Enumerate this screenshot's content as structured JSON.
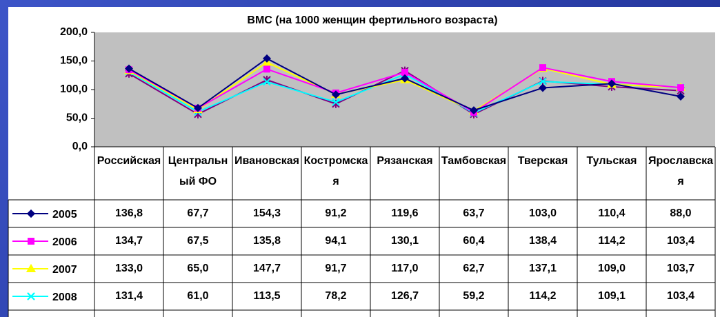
{
  "chart_data": {
    "type": "line",
    "title": "ВМС (на 1000 женщин фертильного возраста)",
    "categories": [
      "Российская",
      "Центральный ФО",
      "Ивановская",
      "Костромская",
      "Рязанская",
      "Тамбовская",
      "Тверская",
      "Тульская",
      "Ярославская"
    ],
    "ylim": [
      0,
      200
    ],
    "yticks": [
      {
        "value": 0,
        "label": "0,0"
      },
      {
        "value": 50,
        "label": "50,0"
      },
      {
        "value": 100,
        "label": "100,0"
      },
      {
        "value": 150,
        "label": "150,0"
      },
      {
        "value": 200,
        "label": "200,0"
      }
    ],
    "grid": false,
    "series": [
      {
        "name": "2005",
        "color": "#000080",
        "marker": "diamond",
        "values": [
          136.8,
          67.7,
          154.3,
          91.2,
          119.6,
          63.7,
          103.0,
          110.4,
          88.0
        ],
        "value_labels": [
          "136,8",
          "67,7",
          "154,3",
          "91,2",
          "119,6",
          "63,7",
          "103,0",
          "110,4",
          "88,0"
        ]
      },
      {
        "name": "2006",
        "color": "#ff00ff",
        "marker": "square",
        "values": [
          134.7,
          67.5,
          135.8,
          94.1,
          130.1,
          60.4,
          138.4,
          114.2,
          103.4
        ],
        "value_labels": [
          "134,7",
          "67,5",
          "135,8",
          "94,1",
          "130,1",
          "60,4",
          "138,4",
          "114,2",
          "103,4"
        ]
      },
      {
        "name": "2007",
        "color": "#ffff00",
        "marker": "triangle",
        "values": [
          133.0,
          65.0,
          147.7,
          91.7,
          117.0,
          62.7,
          137.1,
          109.0,
          103.7
        ],
        "value_labels": [
          "133,0",
          "65,0",
          "147,7",
          "91,7",
          "117,0",
          "62,7",
          "137,1",
          "109,0",
          "103,7"
        ]
      },
      {
        "name": "2008",
        "color": "#00ffff",
        "marker": "x",
        "values": [
          131.4,
          61.0,
          113.5,
          78.2,
          126.7,
          59.2,
          114.2,
          109.1,
          103.4
        ],
        "value_labels": [
          "131,4",
          "61,0",
          "113,5",
          "78,2",
          "126,7",
          "59,2",
          "114,2",
          "109,1",
          "103,4"
        ]
      },
      {
        "color": "#800080",
        "marker": "star",
        "values": [
          128,
          57,
          117,
          75,
          133,
          57,
          115,
          105,
          98
        ]
      }
    ]
  }
}
